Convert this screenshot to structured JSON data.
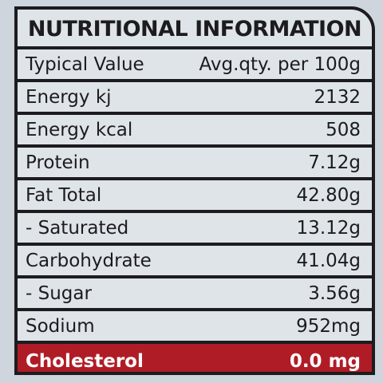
{
  "table": {
    "title": "NUTRITIONAL INFORMATION",
    "header": [
      "Typical Value",
      "Avg.qty. per 100g"
    ],
    "rows": [
      [
        "Energy kj",
        "2132"
      ],
      [
        "Energy kcal",
        "508"
      ],
      [
        "Protein",
        "7.12g"
      ],
      [
        "Fat Total",
        "42.80g"
      ],
      [
        "- Saturated",
        "13.12g"
      ],
      [
        "Carbohydrate",
        "41.04g"
      ],
      [
        "- Sugar",
        "3.56g"
      ],
      [
        "Sodium",
        "952mg"
      ],
      [
        "Cholesterol",
        "0.0 mg"
      ]
    ]
  }
}
